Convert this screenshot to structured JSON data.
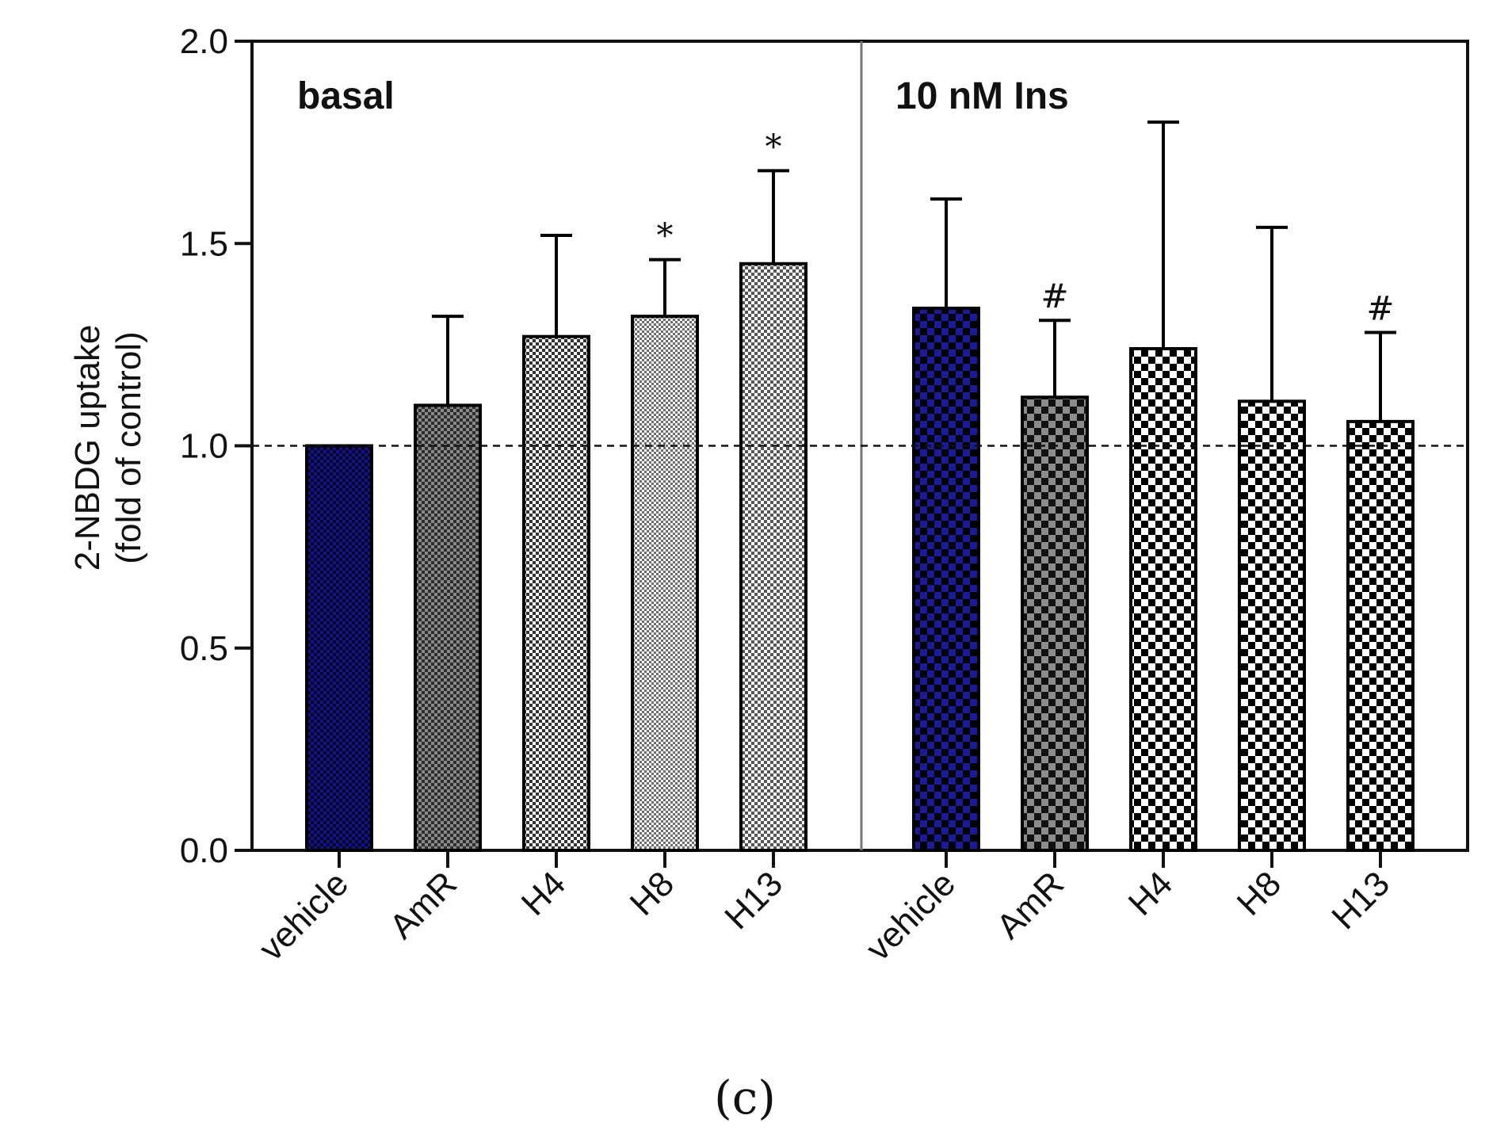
{
  "chart_data": {
    "type": "bar",
    "ylabel": [
      "2-NBDG uptake",
      "(fold of control)"
    ],
    "ylim": [
      0,
      2.0
    ],
    "yticks": [
      0.0,
      0.5,
      1.0,
      1.5,
      2.0
    ],
    "ytick_labels": [
      "0.0",
      "0.5",
      "1.0",
      "1.5",
      "2.0"
    ],
    "reference_line": 1.0,
    "panel_label": "(c)",
    "groups": [
      {
        "label": "basal",
        "categories": [
          "vehicle",
          "AmR",
          "H4",
          "H8",
          "H13"
        ],
        "values": [
          1.0,
          1.1,
          1.27,
          1.32,
          1.45
        ],
        "errors": [
          0.0,
          0.22,
          0.25,
          0.14,
          0.23
        ],
        "annotations": [
          "",
          "",
          "",
          "*",
          "*"
        ]
      },
      {
        "label": "10 nM Ins",
        "categories": [
          "vehicle",
          "AmR",
          "H4",
          "H8",
          "H13"
        ],
        "values": [
          1.34,
          1.12,
          1.24,
          1.11,
          1.06
        ],
        "errors": [
          0.27,
          0.19,
          0.56,
          0.43,
          0.22
        ],
        "annotations": [
          "",
          "#",
          "",
          "",
          "#"
        ]
      }
    ],
    "bar_fills": [
      {
        "fg": "#14147a",
        "bg": "#050535",
        "cell": 4
      },
      {
        "fg": "#8a8a8a",
        "bg": "#2e2e2e",
        "cell": 4
      },
      {
        "fg": "#ffffff",
        "bg": "#333333",
        "cell": 4
      },
      {
        "fg": "#ffffff",
        "bg": "#6e6e6e",
        "cell": 3
      },
      {
        "fg": "#ffffff",
        "bg": "#555555",
        "cell": 4
      },
      {
        "fg": "#1a1a9a",
        "bg": "#000000",
        "cell": 9
      },
      {
        "fg": "#8c8c8c",
        "bg": "#111111",
        "cell": 9
      },
      {
        "fg": "#ffffff",
        "bg": "#000000",
        "cell": 9
      },
      {
        "fg": "#ffffff",
        "bg": "#000000",
        "cell": 9
      },
      {
        "fg": "#ffffff",
        "bg": "#000000",
        "cell": 9
      }
    ]
  }
}
